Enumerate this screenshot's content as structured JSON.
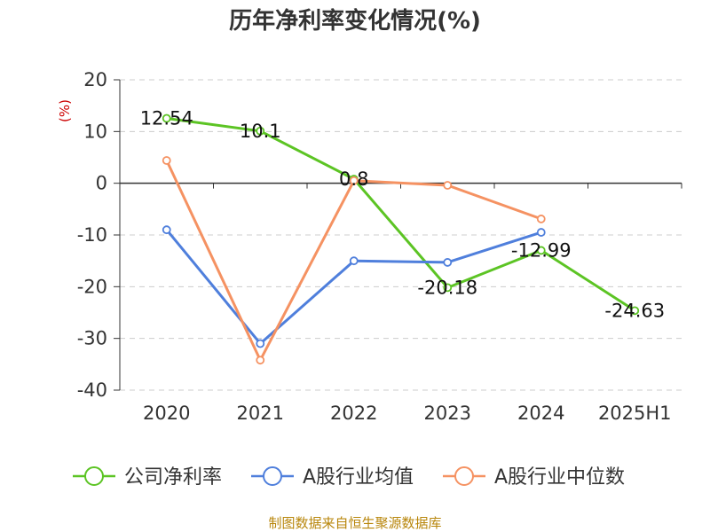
{
  "chart_data": {
    "type": "line",
    "title": "历年净利率变化情况(%)",
    "ylabel": "(%)",
    "xlabel": "",
    "categories": [
      "2020",
      "2021",
      "2022",
      "2023",
      "2024",
      "2025H1"
    ],
    "ylim": [
      -40,
      20
    ],
    "yticks": [
      20,
      10,
      0,
      -10,
      -20,
      -30,
      -40
    ],
    "grid": true,
    "legend_position": "bottom",
    "series": [
      {
        "name": "公司净利率",
        "color": "#5cc424",
        "values": [
          12.54,
          10.1,
          0.8,
          -20.18,
          -12.99,
          -24.63
        ],
        "labels": [
          "12.54",
          "10.1",
          "0.8",
          "-20.18",
          "-12.99",
          "-24.63"
        ]
      },
      {
        "name": "A股行业均值",
        "color": "#4f7fdc",
        "values": [
          -9,
          -31,
          -15,
          -15.3,
          -9.5,
          null
        ]
      },
      {
        "name": "A股行业中位数",
        "color": "#f59262",
        "values": [
          4.4,
          -34.2,
          0.5,
          -0.4,
          -6.9,
          null
        ]
      }
    ],
    "source": "制图数据来自恒生聚源数据库"
  }
}
